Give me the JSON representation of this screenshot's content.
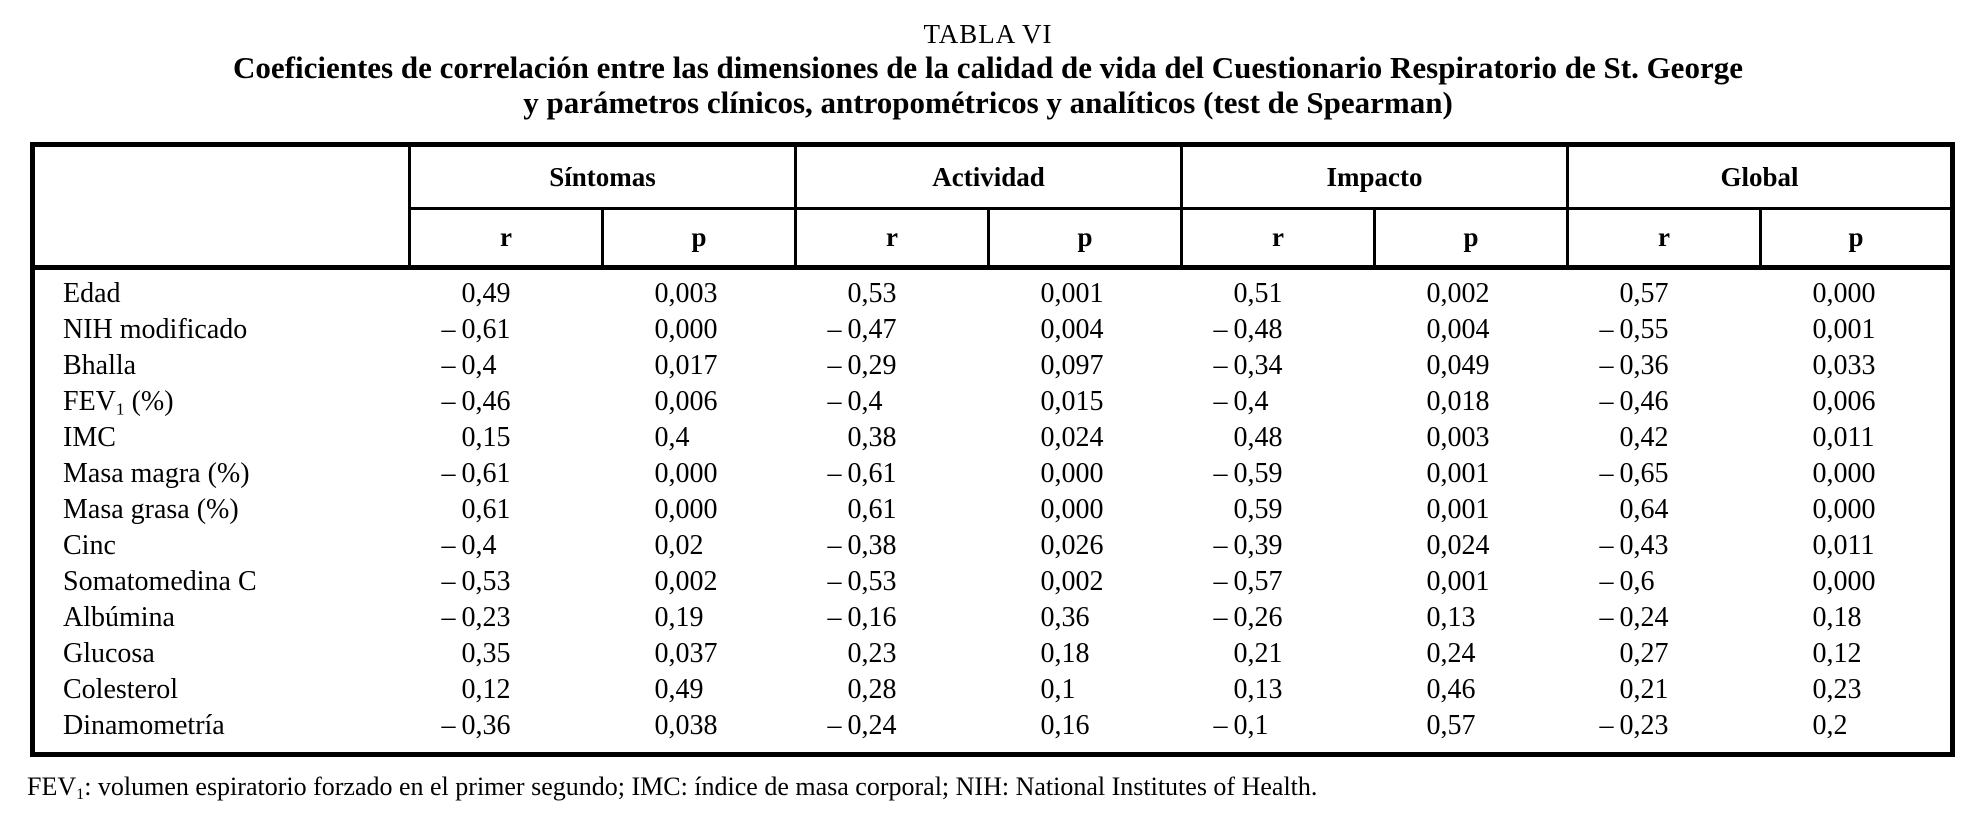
{
  "colors": {
    "text": "#000000",
    "border": "#000000",
    "background": "#ffffff"
  },
  "page": {
    "title": "TABLA VI",
    "subtitle_line1": "Coeficientes de correlación entre las dimensiones de la calidad de vida del Cuestionario Respiratorio de St. George",
    "subtitle_line2": "y parámetros clínicos, antropométricos y analíticos (test de Spearman)",
    "footnote_segments": [
      "FEV",
      {
        "sub": "1"
      },
      ": volumen espiratorio forzado en el primer segundo; IMC: índice de masa corporal; NIH: National Institutes of Health."
    ]
  },
  "table": {
    "groups": [
      "Síntomas",
      "Actividad",
      "Impacto",
      "Global"
    ],
    "subheaders": [
      "r",
      "p"
    ],
    "rows": [
      {
        "label": [
          "Edad"
        ],
        "values": [
          "0,49",
          "0,003",
          "0,53",
          "0,001",
          "0,51",
          "0,002",
          "0,57",
          "0,000"
        ]
      },
      {
        "label": [
          "NIH modificado"
        ],
        "values": [
          "–0,61",
          "0,000",
          "–0,47",
          "0,004",
          "–0,48",
          "0,004",
          "–0,55",
          "0,001"
        ]
      },
      {
        "label": [
          "Bhalla"
        ],
        "values": [
          "–0,4",
          "0,017",
          "–0,29",
          "0,097",
          "–0,34",
          "0,049",
          "–0,36",
          "0,033"
        ]
      },
      {
        "label": [
          "FEV",
          {
            "sub": "1"
          },
          " (%)"
        ],
        "values": [
          "–0,46",
          "0,006",
          "–0,4",
          "0,015",
          "–0,4",
          "0,018",
          "–0,46",
          "0,006"
        ]
      },
      {
        "label": [
          "IMC"
        ],
        "values": [
          "0,15",
          "0,4",
          "0,38",
          "0,024",
          "0,48",
          "0,003",
          "0,42",
          "0,011"
        ]
      },
      {
        "label": [
          "Masa magra (%)"
        ],
        "values": [
          "–0,61",
          "0,000",
          "–0,61",
          "0,000",
          "–0,59",
          "0,001",
          "–0,65",
          "0,000"
        ]
      },
      {
        "label": [
          "Masa grasa (%)"
        ],
        "values": [
          "0,61",
          "0,000",
          "0,61",
          "0,000",
          "0,59",
          "0,001",
          "0,64",
          "0,000"
        ]
      },
      {
        "label": [
          "Cinc"
        ],
        "values": [
          "–0,4",
          "0,02",
          "–0,38",
          "0,026",
          "–0,39",
          "0,024",
          "–0,43",
          "0,011"
        ]
      },
      {
        "label": [
          "Somatomedina C"
        ],
        "values": [
          "–0,53",
          "0,002",
          "–0,53",
          "0,002",
          "–0,57",
          "0,001",
          "–0,6",
          "0,000"
        ]
      },
      {
        "label": [
          "Albúmina"
        ],
        "values": [
          "–0,23",
          "0,19",
          "–0,16",
          "0,36",
          "–0,26",
          "0,13",
          "–0,24",
          "0,18"
        ]
      },
      {
        "label": [
          "Glucosa"
        ],
        "values": [
          "0,35",
          "0,037",
          "0,23",
          "0,18",
          "0,21",
          "0,24",
          "0,27",
          "0,12"
        ]
      },
      {
        "label": [
          "Colesterol"
        ],
        "values": [
          "0,12",
          "0,49",
          "0,28",
          "0,1",
          "0,13",
          "0,46",
          "0,21",
          "0,23"
        ]
      },
      {
        "label": [
          "Dinamometría"
        ],
        "values": [
          "–0,36",
          "0,038",
          "–0,24",
          "0,16",
          "–0,1",
          "0,57",
          "–0,23",
          "0,2"
        ]
      }
    ]
  }
}
